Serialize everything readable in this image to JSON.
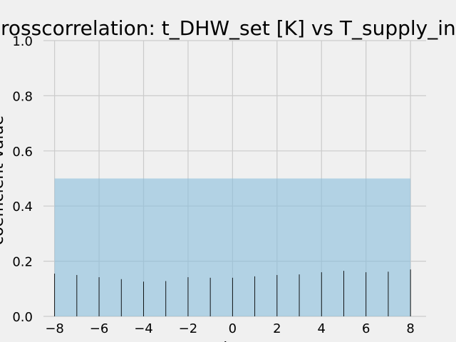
{
  "chart_data": {
    "type": "stem",
    "title": "Crosscorrelation: t_DHW_set [K] vs T_supply_init",
    "xlabel": "lag",
    "ylabel": "coefficient value",
    "xlim": [
      -8.5,
      8.7
    ],
    "ylim": [
      0,
      1.0
    ],
    "grid": true,
    "x_ticks": [
      -8,
      -6,
      -4,
      -2,
      0,
      2,
      4,
      6,
      8
    ],
    "y_ticks": [
      0.0,
      0.2,
      0.4,
      0.6,
      0.8,
      1.0
    ],
    "lags": [
      -8,
      -7,
      -6,
      -5,
      -4,
      -3,
      -2,
      -1,
      0,
      1,
      2,
      3,
      4,
      5,
      6,
      7,
      8
    ],
    "values": [
      0.155,
      0.15,
      0.142,
      0.135,
      0.126,
      0.128,
      0.142,
      0.14,
      0.14,
      0.145,
      0.15,
      0.152,
      0.16,
      0.165,
      0.16,
      0.162,
      0.17
    ],
    "confidence_band": {
      "x": [
        -8,
        8
      ],
      "upper": 0.5,
      "lower": 0.0
    },
    "colors": {
      "background": "#f0f0f0",
      "band": "#89bedc",
      "stem": "#000000",
      "grid": "#cbcbcb"
    }
  }
}
